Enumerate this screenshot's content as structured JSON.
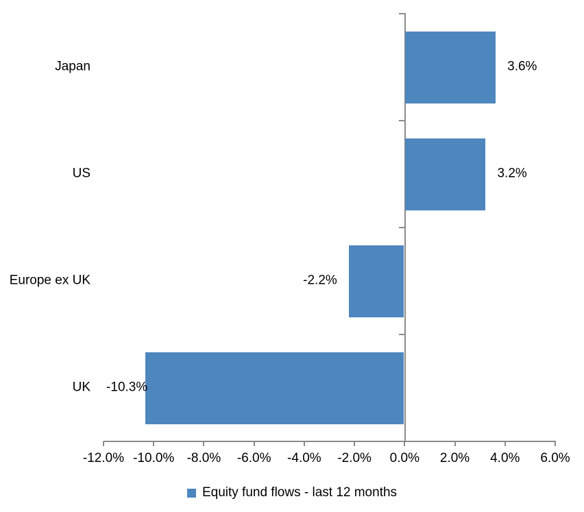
{
  "chart_data": {
    "type": "bar",
    "orientation": "horizontal",
    "title": "",
    "xlabel": "",
    "ylabel": "",
    "categories": [
      "Japan",
      "US",
      "Europe ex UK",
      "UK"
    ],
    "series": [
      {
        "name": "Equity fund flows - last 12 months",
        "values": [
          3.6,
          3.2,
          -2.2,
          -10.3
        ],
        "value_labels": [
          "3.6%",
          "3.2%",
          "-2.2%",
          "-10.3%"
        ]
      }
    ],
    "xlim": [
      -12.0,
      6.0
    ],
    "x_tick_step": 2.0,
    "x_tick_labels": [
      "-12.0%",
      "-10.0%",
      "-8.0%",
      "-6.0%",
      "-4.0%",
      "-2.0%",
      "0.0%",
      "2.0%",
      "4.0%",
      "6.0%"
    ],
    "grid": false,
    "legend_position": "bottom",
    "bar_color": "#4E86BE",
    "axis_color": "#8a8a8a",
    "text_color": "#000000",
    "background_color": "#ffffff"
  },
  "legend": {
    "label": "Equity fund flows - last 12 months"
  }
}
